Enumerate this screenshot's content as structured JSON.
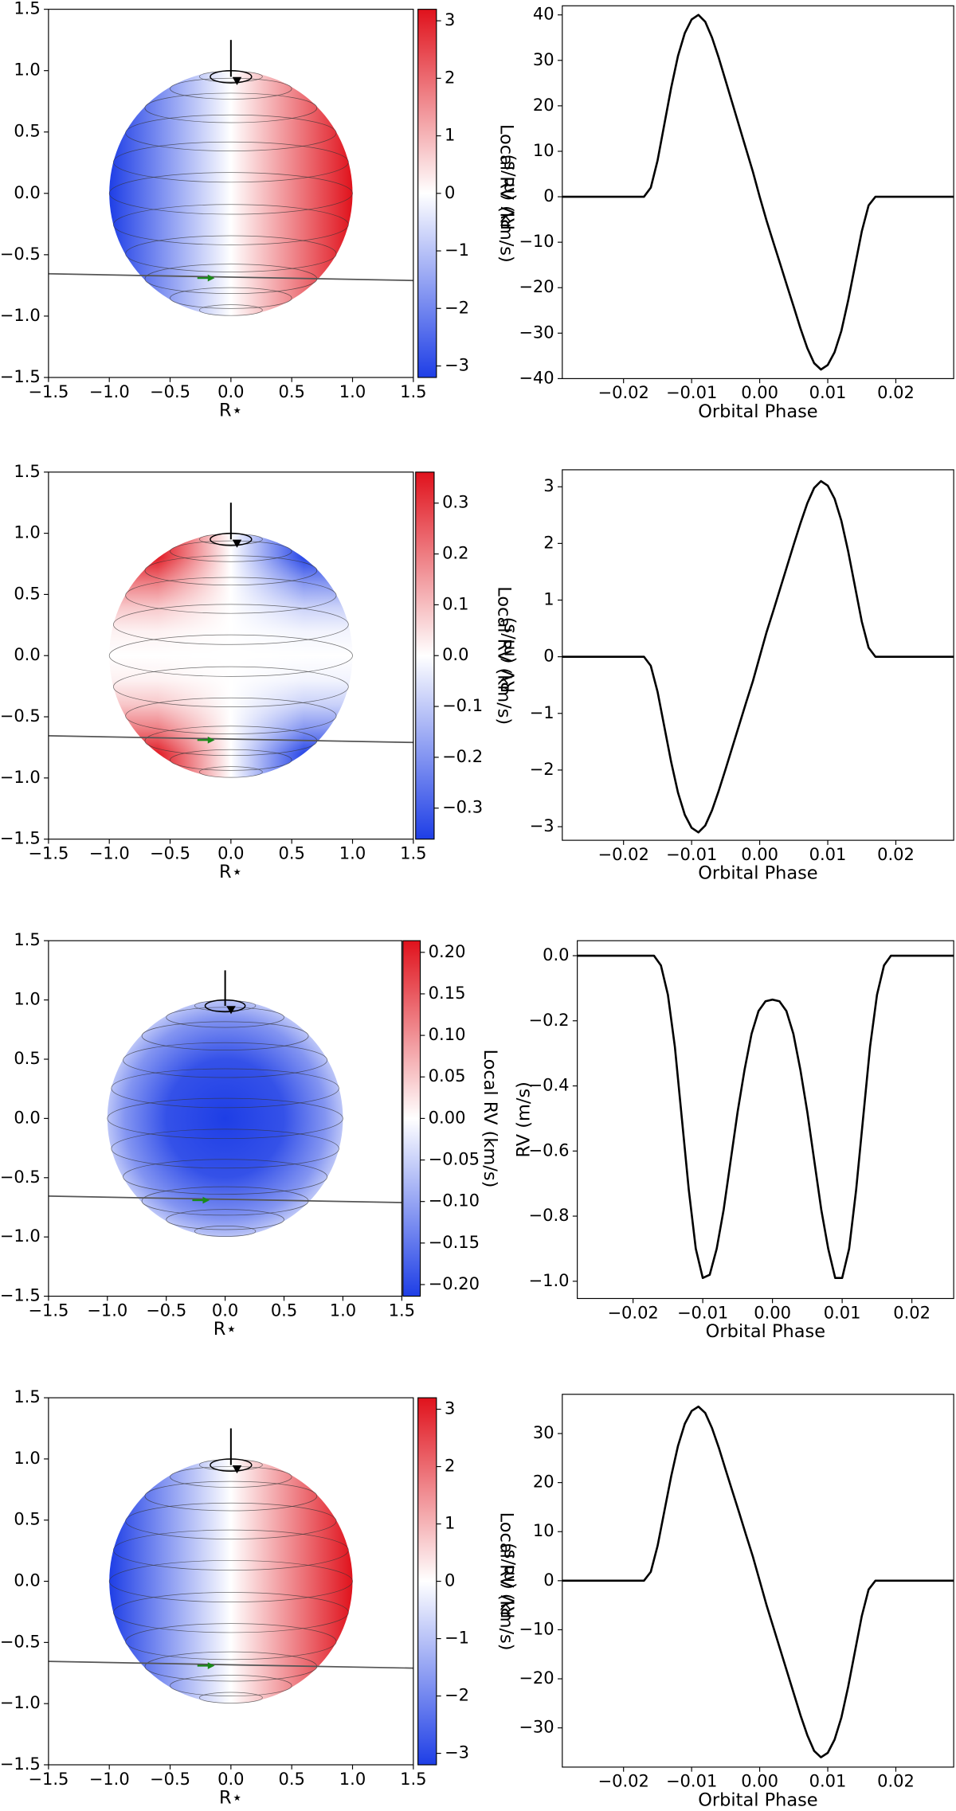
{
  "chart_data": [
    {
      "type": "disk",
      "field": "linear",
      "xlabel": "R⋆",
      "xlim": [
        -1.5,
        1.5
      ],
      "ylim": [
        -1.5,
        1.5
      ],
      "xticks": [
        {
          "value": -1.5,
          "label": "−1.5"
        },
        {
          "value": -1.0,
          "label": "−1.0"
        },
        {
          "value": -0.5,
          "label": "−0.5"
        },
        {
          "value": 0,
          "label": "0.0"
        },
        0.5,
        {
          "value": 1.0,
          "label": "1.0"
        },
        1.5
      ],
      "yticks": [
        {
          "value": -1.5,
          "label": "−1.5"
        },
        {
          "value": -1.0,
          "label": "−1.0"
        },
        {
          "value": -0.5,
          "label": "−0.5"
        },
        {
          "value": 0,
          "label": "0.0"
        },
        0.5,
        {
          "value": 1.0,
          "label": "1.0"
        },
        1.5
      ],
      "colorbar": {
        "label": "Local RV (km/s)",
        "lim": [
          -3.2,
          3.2
        ],
        "colors": [
          "#1e3ee6",
          "#ffffff",
          "#e0121c"
        ],
        "ticks": [
          {
            "value": -3,
            "label": "−3"
          },
          {
            "value": -2,
            "label": "−2"
          },
          {
            "value": -1,
            "label": "−1"
          },
          0,
          1,
          2,
          3
        ]
      }
    },
    {
      "type": "line",
      "xlabel": "Orbital Phase",
      "ylabel": "RV (m/s)",
      "color": "#000000",
      "x": [
        -0.029,
        -0.017,
        -0.016,
        -0.015,
        -0.014,
        -0.013,
        -0.012,
        -0.011,
        -0.01,
        -0.009,
        -0.008,
        -0.007,
        -0.006,
        -0.005,
        -0.004,
        -0.003,
        -0.002,
        -0.001,
        0,
        0.001,
        0.002,
        0.003,
        0.004,
        0.005,
        0.006,
        0.007,
        0.008,
        0.009,
        0.01,
        0.011,
        0.012,
        0.013,
        0.014,
        0.015,
        0.016,
        0.017,
        0.0285
      ],
      "values": [
        0,
        0,
        2,
        8,
        16,
        24,
        31,
        36,
        39,
        40,
        38.5,
        35,
        30.5,
        25.5,
        20.5,
        15.5,
        10.5,
        5.5,
        0,
        -5.2,
        -10,
        -14.7,
        -19.5,
        -24.2,
        -29,
        -33.3,
        -36.6,
        -38,
        -37,
        -34.2,
        -29.5,
        -22.8,
        -15.2,
        -7.6,
        -1.9,
        0,
        0
      ],
      "xlim": [
        -0.029,
        0.0285
      ],
      "ylim": [
        -40,
        42
      ],
      "xticks": [
        {
          "value": -0.02,
          "label": "−0.02"
        },
        {
          "value": -0.01,
          "label": "−0.01"
        },
        {
          "value": 0,
          "label": "0.00"
        },
        0.01,
        0.02
      ],
      "yticks": [
        {
          "value": -40,
          "label": "−40"
        },
        {
          "value": -30,
          "label": "−30"
        },
        {
          "value": -20,
          "label": "−20"
        },
        {
          "value": -10,
          "label": "−10"
        },
        0,
        10,
        20,
        30,
        40
      ]
    },
    {
      "type": "disk",
      "field": "quadrupole",
      "xlabel": "R⋆",
      "xlim": [
        -1.5,
        1.5
      ],
      "ylim": [
        -1.5,
        1.5
      ],
      "xticks": [
        {
          "value": -1.5,
          "label": "−1.5"
        },
        {
          "value": -1.0,
          "label": "−1.0"
        },
        {
          "value": -0.5,
          "label": "−0.5"
        },
        {
          "value": 0,
          "label": "0.0"
        },
        0.5,
        {
          "value": 1.0,
          "label": "1.0"
        },
        1.5
      ],
      "yticks": [
        {
          "value": -1.5,
          "label": "−1.5"
        },
        {
          "value": -1.0,
          "label": "−1.0"
        },
        {
          "value": -0.5,
          "label": "−0.5"
        },
        {
          "value": 0,
          "label": "0.0"
        },
        0.5,
        {
          "value": 1.0,
          "label": "1.0"
        },
        1.5
      ],
      "colorbar": {
        "label": "Local RV (km/s)",
        "lim": [
          -0.361,
          0.361
        ],
        "colors": [
          "#1e3ee6",
          "#ffffff",
          "#e0121c"
        ],
        "ticks": [
          {
            "value": -0.3,
            "label": "−0.3"
          },
          {
            "value": -0.2,
            "label": "−0.2"
          },
          {
            "value": -0.1,
            "label": "−0.1"
          },
          {
            "value": 0,
            "label": "0.0"
          },
          0.1,
          0.2,
          0.3
        ]
      }
    },
    {
      "type": "line",
      "xlabel": "Orbital Phase",
      "ylabel": "RV (m/s)",
      "color": "#000000",
      "x": [
        -0.029,
        -0.017,
        -0.016,
        -0.015,
        -0.014,
        -0.013,
        -0.012,
        -0.011,
        -0.01,
        -0.009,
        -0.008,
        -0.007,
        -0.006,
        -0.005,
        -0.004,
        -0.003,
        -0.002,
        -0.001,
        0,
        0.001,
        0.002,
        0.003,
        0.004,
        0.005,
        0.006,
        0.007,
        0.008,
        0.009,
        0.01,
        0.011,
        0.012,
        0.013,
        0.014,
        0.015,
        0.016,
        0.017,
        0.0285
      ],
      "values": [
        0,
        0,
        -0.16,
        -0.62,
        -1.24,
        -1.86,
        -2.4,
        -2.79,
        -3.02,
        -3.1,
        -2.98,
        -2.71,
        -2.36,
        -1.98,
        -1.59,
        -1.2,
        -0.81,
        -0.43,
        0,
        0.43,
        0.81,
        1.2,
        1.59,
        1.98,
        2.36,
        2.71,
        2.98,
        3.1,
        3.02,
        2.79,
        2.4,
        1.86,
        1.24,
        0.62,
        0.16,
        0,
        0
      ],
      "xlim": [
        -0.029,
        0.0285
      ],
      "ylim": [
        -3.24,
        3.3
      ],
      "xticks": [
        {
          "value": -0.02,
          "label": "−0.02"
        },
        {
          "value": -0.01,
          "label": "−0.01"
        },
        {
          "value": 0,
          "label": "0.00"
        },
        0.01,
        0.02
      ],
      "yticks": [
        {
          "value": -3,
          "label": "−3"
        },
        {
          "value": -2,
          "label": "−2"
        },
        {
          "value": -1,
          "label": "−1"
        },
        0,
        1,
        2,
        3
      ]
    },
    {
      "type": "disk",
      "field": "radial",
      "xlabel": "R⋆",
      "xlim": [
        -1.5,
        1.5
      ],
      "ylim": [
        -1.5,
        1.5
      ],
      "xticks": [
        {
          "value": -1.5,
          "label": "−1.5"
        },
        {
          "value": -1.0,
          "label": "−1.0"
        },
        {
          "value": -0.5,
          "label": "−0.5"
        },
        {
          "value": 0,
          "label": "0.0"
        },
        0.5,
        {
          "value": 1.0,
          "label": "1.0"
        },
        1.5
      ],
      "yticks": [
        {
          "value": -1.5,
          "label": "−1.5"
        },
        {
          "value": -1.0,
          "label": "−1.0"
        },
        {
          "value": -0.5,
          "label": "−0.5"
        },
        {
          "value": 0,
          "label": "0.0"
        },
        0.5,
        {
          "value": 1.0,
          "label": "1.0"
        },
        1.5
      ],
      "colorbar": {
        "label": "Local RV (km/s)",
        "lim": [
          -0.214,
          0.214
        ],
        "colors": [
          "#1e3ee6",
          "#ffffff",
          "#e0121c"
        ],
        "ticks": [
          {
            "value": -0.2,
            "label": "−0.20"
          },
          {
            "value": -0.15,
            "label": "−0.15"
          },
          {
            "value": -0.1,
            "label": "−0.10"
          },
          {
            "value": -0.05,
            "label": "−0.05"
          },
          {
            "value": 0,
            "label": "0.00"
          },
          0.05,
          {
            "value": 0.1,
            "label": "0.10"
          },
          0.15,
          {
            "value": 0.2,
            "label": "0.20"
          }
        ]
      }
    },
    {
      "type": "line",
      "xlabel": "Orbital Phase",
      "ylabel": "RV (m/s)",
      "color": "#000000",
      "x": [
        -0.028,
        -0.017,
        -0.016,
        -0.015,
        -0.014,
        -0.013,
        -0.012,
        -0.011,
        -0.01,
        -0.009,
        -0.008,
        -0.007,
        -0.006,
        -0.005,
        -0.004,
        -0.003,
        -0.002,
        -0.001,
        0,
        0.001,
        0.002,
        0.003,
        0.004,
        0.005,
        0.006,
        0.007,
        0.008,
        0.009,
        0.01,
        0.011,
        0.012,
        0.013,
        0.014,
        0.015,
        0.016,
        0.017,
        0.026
      ],
      "values": [
        0,
        0,
        -0.03,
        -0.12,
        -0.28,
        -0.5,
        -0.72,
        -0.9,
        -0.99,
        -0.98,
        -0.9,
        -0.78,
        -0.63,
        -0.48,
        -0.35,
        -0.24,
        -0.17,
        -0.14,
        -0.135,
        -0.14,
        -0.17,
        -0.24,
        -0.35,
        -0.48,
        -0.63,
        -0.78,
        -0.9,
        -0.99,
        -0.99,
        -0.9,
        -0.72,
        -0.5,
        -0.28,
        -0.12,
        -0.03,
        0,
        0
      ],
      "xlim": [
        -0.028,
        0.026
      ],
      "ylim": [
        -1.053,
        0.046
      ],
      "xticks": [
        {
          "value": -0.02,
          "label": "−0.02"
        },
        {
          "value": -0.01,
          "label": "−0.01"
        },
        {
          "value": 0,
          "label": "0.00"
        },
        0.01,
        0.02
      ],
      "yticks": [
        {
          "value": -1.0,
          "label": "−1.0"
        },
        {
          "value": -0.8,
          "label": "−0.8"
        },
        {
          "value": -0.6,
          "label": "−0.6"
        },
        {
          "value": -0.4,
          "label": "−0.4"
        },
        {
          "value": -0.2,
          "label": "−0.2"
        },
        {
          "value": 0,
          "label": "0.0"
        }
      ]
    },
    {
      "type": "disk",
      "field": "linear",
      "xlabel": "R⋆",
      "xlim": [
        -1.5,
        1.5
      ],
      "ylim": [
        -1.5,
        1.5
      ],
      "xticks": [
        {
          "value": -1.5,
          "label": "−1.5"
        },
        {
          "value": -1.0,
          "label": "−1.0"
        },
        {
          "value": -0.5,
          "label": "−0.5"
        },
        {
          "value": 0,
          "label": "0.0"
        },
        0.5,
        {
          "value": 1.0,
          "label": "1.0"
        },
        1.5
      ],
      "yticks": [
        {
          "value": -1.5,
          "label": "−1.5"
        },
        {
          "value": -1.0,
          "label": "−1.0"
        },
        {
          "value": -0.5,
          "label": "−0.5"
        },
        {
          "value": 0,
          "label": "0.0"
        },
        0.5,
        {
          "value": 1.0,
          "label": "1.0"
        },
        1.5
      ],
      "colorbar": {
        "label": "Local RV (km/s)",
        "lim": [
          -3.2,
          3.2
        ],
        "colors": [
          "#1e3ee6",
          "#ffffff",
          "#e0121c"
        ],
        "ticks": [
          {
            "value": -3,
            "label": "−3"
          },
          {
            "value": -2,
            "label": "−2"
          },
          {
            "value": -1,
            "label": "−1"
          },
          0,
          1,
          2,
          3
        ]
      }
    },
    {
      "type": "line",
      "xlabel": "Orbital Phase",
      "ylabel": "RV (m/s)",
      "color": "#000000",
      "x": [
        -0.029,
        -0.017,
        -0.016,
        -0.015,
        -0.014,
        -0.013,
        -0.012,
        -0.011,
        -0.01,
        -0.009,
        -0.008,
        -0.007,
        -0.006,
        -0.005,
        -0.004,
        -0.003,
        -0.002,
        -0.001,
        0,
        0.001,
        0.002,
        0.003,
        0.004,
        0.005,
        0.006,
        0.007,
        0.008,
        0.009,
        0.01,
        0.011,
        0.012,
        0.013,
        0.014,
        0.015,
        0.016,
        0.017,
        0.0285
      ],
      "values": [
        0,
        0,
        1.8,
        7.1,
        14.2,
        21.3,
        27.5,
        32,
        34.6,
        35.5,
        34.2,
        31.1,
        27.1,
        22.6,
        18.2,
        13.8,
        9.3,
        4.9,
        0,
        -4.95,
        -9.45,
        -13.95,
        -18.45,
        -22.95,
        -27.45,
        -31.5,
        -34.7,
        -36,
        -35.1,
        -32.4,
        -27.9,
        -21.6,
        -14.4,
        -7.2,
        -1.8,
        0,
        0
      ],
      "xlim": [
        -0.029,
        0.0285
      ],
      "ylim": [
        -38,
        38
      ],
      "xticks": [
        {
          "value": -0.02,
          "label": "−0.02"
        },
        {
          "value": -0.01,
          "label": "−0.01"
        },
        {
          "value": 0,
          "label": "0.00"
        },
        0.01,
        0.02
      ],
      "yticks": [
        {
          "value": -30,
          "label": "−30"
        },
        {
          "value": -20,
          "label": "−20"
        },
        {
          "value": -10,
          "label": "−10"
        },
        0,
        10,
        20,
        30
      ]
    }
  ]
}
